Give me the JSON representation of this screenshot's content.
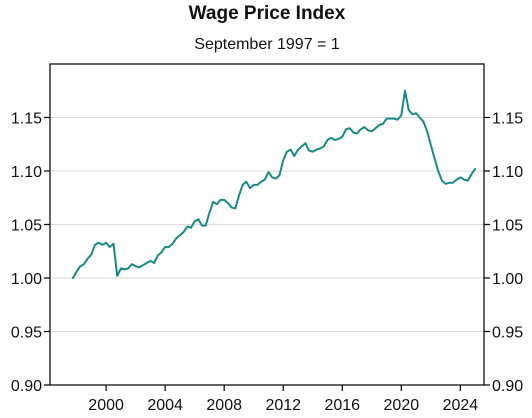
{
  "chart_data": {
    "type": "line",
    "title": "Wage Price Index",
    "subtitle": "September 1997 = 1",
    "xlabel": "",
    "ylabel": "",
    "xlim": [
      1996.2,
      2025.6
    ],
    "ylim": [
      0.9,
      1.2
    ],
    "x_ticks": [
      2000,
      2004,
      2008,
      2012,
      2016,
      2020,
      2024
    ],
    "x_tick_labels": [
      "2000",
      "2004",
      "2008",
      "2012",
      "2016",
      "2020",
      "2024"
    ],
    "y_ticks": [
      0.9,
      0.95,
      1.0,
      1.05,
      1.1,
      1.15
    ],
    "y_tick_labels": [
      "0.90",
      "0.95",
      "1.00",
      "1.05",
      "1.10",
      "1.15"
    ],
    "y_axis_both_sides": true,
    "grid": "horizontal",
    "legend": "none",
    "colors": {
      "series": "#1a8a86",
      "axis": "#111111",
      "grid": "#d9d9d9"
    },
    "series": [
      {
        "x": [
          1997.75,
          1998.0,
          1998.25,
          1998.5,
          1998.75,
          1999.0,
          1999.25,
          1999.5,
          1999.75,
          2000.0,
          2000.25,
          2000.5,
          2000.75,
          2001.0,
          2001.25,
          2001.5,
          2001.75,
          2002.0,
          2002.25,
          2002.5,
          2002.75,
          2003.0,
          2003.25,
          2003.5,
          2003.75,
          2004.0,
          2004.25,
          2004.5,
          2004.75,
          2005.0,
          2005.25,
          2005.5,
          2005.75,
          2006.0,
          2006.25,
          2006.5,
          2006.75,
          2007.0,
          2007.25,
          2007.5,
          2007.75,
          2008.0,
          2008.25,
          2008.5,
          2008.75,
          2009.0,
          2009.25,
          2009.5,
          2009.75,
          2010.0,
          2010.25,
          2010.5,
          2010.75,
          2011.0,
          2011.25,
          2011.5,
          2011.75,
          2012.0,
          2012.25,
          2012.5,
          2012.75,
          2013.0,
          2013.25,
          2013.5,
          2013.75,
          2014.0,
          2014.25,
          2014.5,
          2014.75,
          2015.0,
          2015.25,
          2015.5,
          2015.75,
          2016.0,
          2016.25,
          2016.5,
          2016.75,
          2017.0,
          2017.25,
          2017.5,
          2017.75,
          2018.0,
          2018.25,
          2018.5,
          2018.75,
          2019.0,
          2019.25,
          2019.5,
          2019.75,
          2020.0,
          2020.25,
          2020.5,
          2020.75,
          2021.0,
          2021.25,
          2021.5,
          2021.75,
          2022.0,
          2022.25,
          2022.5,
          2022.75,
          2023.0,
          2023.25,
          2023.5,
          2023.75,
          2024.0,
          2024.25,
          2024.5,
          2024.75,
          2025.0
        ],
        "values": [
          1.0,
          1.006,
          1.011,
          1.013,
          1.018,
          1.022,
          1.031,
          1.033,
          1.031,
          1.033,
          1.029,
          1.032,
          1.002,
          1.009,
          1.008,
          1.009,
          1.013,
          1.011,
          1.01,
          1.012,
          1.014,
          1.016,
          1.014,
          1.021,
          1.024,
          1.029,
          1.029,
          1.032,
          1.037,
          1.04,
          1.043,
          1.048,
          1.047,
          1.053,
          1.055,
          1.049,
          1.049,
          1.061,
          1.071,
          1.069,
          1.073,
          1.073,
          1.07,
          1.066,
          1.065,
          1.077,
          1.087,
          1.09,
          1.084,
          1.087,
          1.087,
          1.09,
          1.092,
          1.099,
          1.094,
          1.093,
          1.096,
          1.11,
          1.118,
          1.12,
          1.114,
          1.12,
          1.123,
          1.126,
          1.119,
          1.118,
          1.12,
          1.121,
          1.123,
          1.129,
          1.131,
          1.129,
          1.13,
          1.132,
          1.139,
          1.14,
          1.136,
          1.135,
          1.139,
          1.141,
          1.138,
          1.137,
          1.14,
          1.143,
          1.144,
          1.149,
          1.149,
          1.149,
          1.148,
          1.152,
          1.175,
          1.157,
          1.153,
          1.154,
          1.15,
          1.146,
          1.137,
          1.124,
          1.112,
          1.1,
          1.091,
          1.088,
          1.089,
          1.089,
          1.092,
          1.094,
          1.092,
          1.091,
          1.097,
          1.102
        ]
      }
    ]
  }
}
